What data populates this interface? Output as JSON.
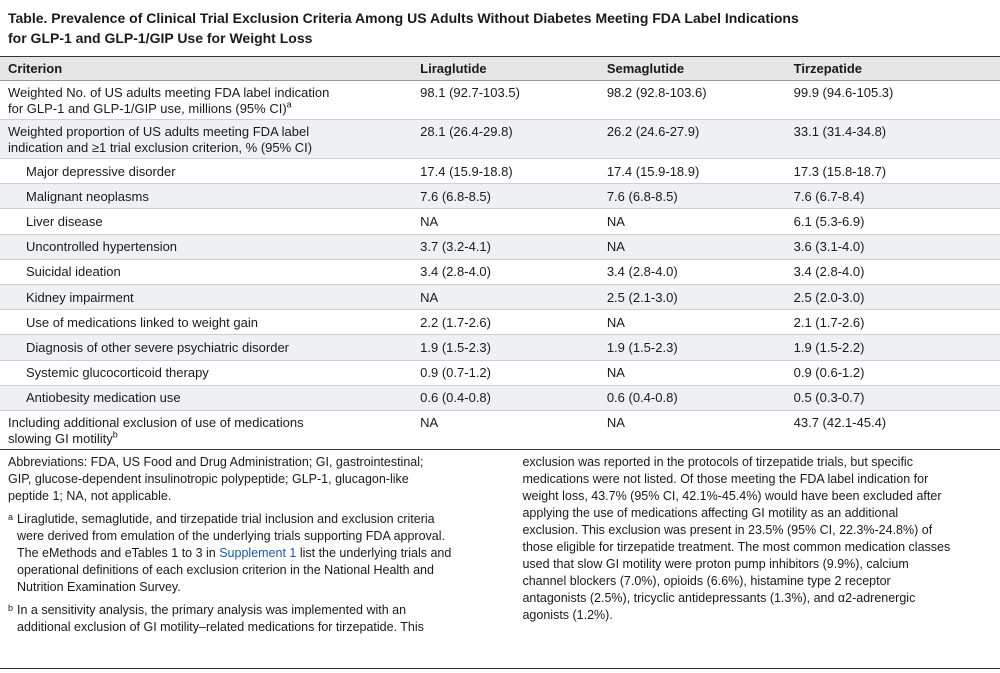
{
  "title": {
    "line1": "Table. Prevalence of Clinical Trial Exclusion Criteria Among US Adults Without Diabetes Meeting FDA Label Indications",
    "line2": "for GLP-1 and GLP-1/GIP Use for Weight Loss"
  },
  "table": {
    "headers": [
      "Criterion",
      "Liraglutide",
      "Semaglutide",
      "Tirzepatide"
    ],
    "rows": [
      {
        "c1a": "Weighted No. of US adults meeting FDA label indication",
        "c1b": "for GLP-1 and GLP-1/GIP use, millions (95% CI)",
        "sup": "a",
        "v": [
          "98.1 (92.7-103.5)",
          "98.2 (92.8-103.6)",
          "99.9 (94.6-105.3)"
        ]
      },
      {
        "c1a": "Weighted proportion of US adults meeting FDA label",
        "c1b": "indication and ≥1 trial exclusion criterion, % (95% CI)",
        "v": [
          "28.1 (26.4-29.8)",
          "26.2 (24.6-27.9)",
          "33.1 (31.4-34.8)"
        ]
      },
      {
        "c1": "Major depressive disorder",
        "v": [
          "17.4 (15.9-18.8)",
          "17.4 (15.9-18.9)",
          "17.3 (15.8-18.7)"
        ]
      },
      {
        "c1": "Malignant neoplasms",
        "v": [
          "7.6 (6.8-8.5)",
          "7.6 (6.8-8.5)",
          "7.6 (6.7-8.4)"
        ]
      },
      {
        "c1": "Liver disease",
        "v": [
          "NA",
          "NA",
          "6.1 (5.3-6.9)"
        ]
      },
      {
        "c1": "Uncontrolled hypertension",
        "v": [
          "3.7 (3.2-4.1)",
          "NA",
          "3.6 (3.1-4.0)"
        ]
      },
      {
        "c1": "Suicidal ideation",
        "v": [
          "3.4 (2.8-4.0)",
          "3.4 (2.8-4.0)",
          "3.4 (2.8-4.0)"
        ]
      },
      {
        "c1": "Kidney impairment",
        "v": [
          "NA",
          "2.5 (2.1-3.0)",
          "2.5 (2.0-3.0)"
        ]
      },
      {
        "c1": "Use of medications linked to weight gain",
        "v": [
          "2.2 (1.7-2.6)",
          "NA",
          "2.1 (1.7-2.6)"
        ]
      },
      {
        "c1": "Diagnosis of other severe psychiatric disorder",
        "v": [
          "1.9 (1.5-2.3)",
          "1.9 (1.5-2.3)",
          "1.9 (1.5-2.2)"
        ]
      },
      {
        "c1": "Systemic glucocorticoid therapy",
        "v": [
          "0.9 (0.7-1.2)",
          "NA",
          "0.9 (0.6-1.2)"
        ]
      },
      {
        "c1": "Antiobesity medication use",
        "v": [
          "0.6 (0.4-0.8)",
          "0.6 (0.4-0.8)",
          "0.5 (0.3-0.7)"
        ]
      },
      {
        "c1a": "Including additional exclusion of use of medications",
        "c1b": "slowing GI motility",
        "sup": "b",
        "v": [
          "NA",
          "NA",
          "43.7 (42.1-45.4)"
        ]
      }
    ]
  },
  "notes": {
    "abbrev": [
      "Abbreviations: FDA, US Food and Drug Administration; GI, gastrointestinal;",
      "GIP, glucose-dependent insulinotropic polypeptide; GLP-1, glucagon-like",
      "peptide 1; NA, not applicable."
    ],
    "fn_a_mark": "a",
    "fn_a_pre": [
      "Liraglutide, semaglutide, and tirzepatide trial inclusion and exclusion criteria",
      "were derived from emulation of the underlying trials supporting FDA approval.",
      "The eMethods and eTables 1 to 3 in "
    ],
    "fn_a_link": "Supplement 1",
    "fn_a_post": [
      " list the underlying trials and",
      "operational definitions of each exclusion criterion in the National Health and",
      "Nutrition Examination Survey."
    ],
    "fn_b_mark": "b",
    "fn_b": [
      "In a sensitivity analysis, the primary analysis was implemented with an",
      "additional exclusion of GI motility–related medications for tirzepatide. This"
    ],
    "right": [
      "exclusion was reported in the protocols of tirzepatide trials, but specific",
      "medications were not listed. Of those meeting the FDA label indication for",
      "weight loss, 43.7% (95% CI, 42.1%-45.4%) would have been excluded after",
      "applying the use of medications affecting GI motility as an additional",
      "exclusion. This exclusion was present in 23.5% (95% CI, 22.3%-24.8%) of",
      "those eligible for tirzepatide treatment. The most common medication classes",
      "used that slow GI motility were proton pump inhibitors (9.9%), calcium",
      "channel blockers (7.0%), opioids (6.6%), histamine type 2 receptor",
      "antagonists (2.5%), tricyclic antidepressants (1.3%), and α2-adrenergic",
      "agonists (1.2%)."
    ]
  }
}
